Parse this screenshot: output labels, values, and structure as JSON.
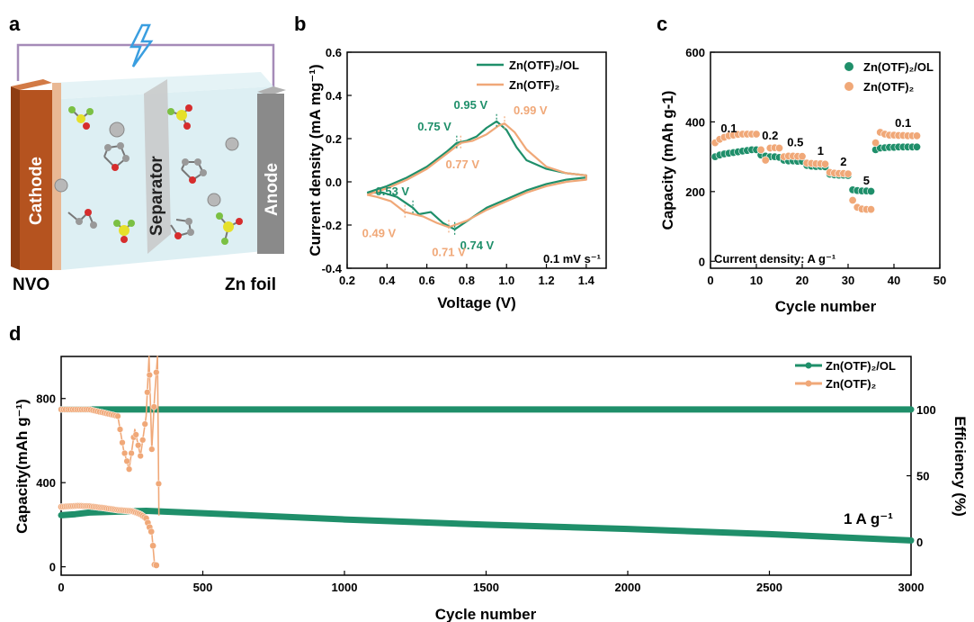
{
  "colors": {
    "ol": "#1f8f6a",
    "plain": "#f0a878",
    "cathode": "#b5531f",
    "anode": "#8a8a8a",
    "wire": "#a58bb8",
    "bolt": "#3a9ee0"
  },
  "panels": {
    "a": "a",
    "b": "b",
    "c": "c",
    "d": "d"
  },
  "schematic": {
    "cathode": "Cathode",
    "separator": "Separator",
    "anode": "Anode",
    "left_label": "NVO",
    "right_label": "Zn foil",
    "bolt_icon": "lightning-icon"
  },
  "chart_data": [
    {
      "id": "b",
      "type": "line",
      "xlabel": "Voltage (V)",
      "ylabel": "Current density (mA mg⁻¹)",
      "xlim": [
        0.2,
        1.5
      ],
      "ylim": [
        -0.4,
        0.6
      ],
      "xticks": [
        "0.2",
        "0.4",
        "0.6",
        "0.8",
        "1.0",
        "1.2",
        "1.4"
      ],
      "yticks": [
        "-0.4",
        "-0.2",
        "0.0",
        "0.2",
        "0.4",
        "0.6"
      ],
      "legend": [
        "Zn(OTF)₂/OL",
        "Zn(OTF)₂"
      ],
      "rate_note": "0.1 mV s⁻¹",
      "series": [
        {
          "name": "Zn(OTF)₂/OL",
          "color_key": "ol",
          "anodic": [
            [
              0.3,
              -0.05
            ],
            [
              0.4,
              -0.02
            ],
            [
              0.5,
              0.02
            ],
            [
              0.6,
              0.07
            ],
            [
              0.7,
              0.14
            ],
            [
              0.75,
              0.18
            ],
            [
              0.8,
              0.19
            ],
            [
              0.85,
              0.21
            ],
            [
              0.9,
              0.25
            ],
            [
              0.95,
              0.28
            ],
            [
              1.0,
              0.24
            ],
            [
              1.05,
              0.16
            ],
            [
              1.1,
              0.1
            ],
            [
              1.2,
              0.06
            ],
            [
              1.3,
              0.04
            ],
            [
              1.4,
              0.03
            ]
          ],
          "cathodic": [
            [
              1.4,
              0.02
            ],
            [
              1.3,
              0.01
            ],
            [
              1.2,
              -0.01
            ],
            [
              1.1,
              -0.04
            ],
            [
              1.0,
              -0.08
            ],
            [
              0.9,
              -0.12
            ],
            [
              0.82,
              -0.17
            ],
            [
              0.74,
              -0.22
            ],
            [
              0.68,
              -0.19
            ],
            [
              0.62,
              -0.14
            ],
            [
              0.56,
              -0.15
            ],
            [
              0.53,
              -0.12
            ],
            [
              0.45,
              -0.07
            ],
            [
              0.38,
              -0.05
            ],
            [
              0.3,
              -0.05
            ]
          ]
        },
        {
          "name": "Zn(OTF)₂",
          "color_key": "plain",
          "anodic": [
            [
              0.3,
              -0.06
            ],
            [
              0.4,
              -0.03
            ],
            [
              0.5,
              0.01
            ],
            [
              0.6,
              0.06
            ],
            [
              0.7,
              0.13
            ],
            [
              0.77,
              0.18
            ],
            [
              0.83,
              0.19
            ],
            [
              0.9,
              0.22
            ],
            [
              0.96,
              0.26
            ],
            [
              0.99,
              0.27
            ],
            [
              1.04,
              0.23
            ],
            [
              1.1,
              0.15
            ],
            [
              1.2,
              0.07
            ],
            [
              1.3,
              0.04
            ],
            [
              1.4,
              0.03
            ]
          ],
          "cathodic": [
            [
              1.4,
              0.01
            ],
            [
              1.3,
              0.0
            ],
            [
              1.2,
              -0.02
            ],
            [
              1.1,
              -0.05
            ],
            [
              1.0,
              -0.09
            ],
            [
              0.9,
              -0.13
            ],
            [
              0.8,
              -0.18
            ],
            [
              0.71,
              -0.21
            ],
            [
              0.65,
              -0.19
            ],
            [
              0.58,
              -0.16
            ],
            [
              0.49,
              -0.14
            ],
            [
              0.42,
              -0.09
            ],
            [
              0.35,
              -0.07
            ],
            [
              0.3,
              -0.06
            ]
          ]
        }
      ],
      "annotations": [
        {
          "text": "0.95 V",
          "x": 0.95,
          "y": 0.28,
          "color_key": "ol"
        },
        {
          "text": "0.75 V",
          "x": 0.75,
          "y": 0.18,
          "color_key": "ol"
        },
        {
          "text": "0.99 V",
          "x": 0.99,
          "y": 0.27,
          "color_key": "plain"
        },
        {
          "text": "0.77 V",
          "x": 0.77,
          "y": 0.18,
          "color_key": "plain"
        },
        {
          "text": "0.53 V",
          "x": 0.53,
          "y": -0.12,
          "color_key": "ol"
        },
        {
          "text": "0.74 V",
          "x": 0.74,
          "y": -0.22,
          "color_key": "ol"
        },
        {
          "text": "0.49 V",
          "x": 0.49,
          "y": -0.14,
          "color_key": "plain"
        },
        {
          "text": "0.71 V",
          "x": 0.71,
          "y": -0.21,
          "color_key": "plain"
        }
      ]
    },
    {
      "id": "c",
      "type": "scatter",
      "xlabel": "Cycle number",
      "ylabel": "Capacity (mAh g-1)",
      "xlim": [
        0,
        50
      ],
      "ylim": [
        -20,
        600
      ],
      "xticks": [
        "0",
        "10",
        "20",
        "30",
        "40",
        "50"
      ],
      "yticks": [
        "0",
        "200",
        "400",
        "600"
      ],
      "legend": [
        "Zn(OTF)₂/OL",
        "Zn(OTF)₂"
      ],
      "note": "Current density: A g⁻¹",
      "rates": [
        {
          "label": "0.1",
          "x": 4,
          "y": 370
        },
        {
          "label": "0.2",
          "x": 13,
          "y": 350
        },
        {
          "label": "0.5",
          "x": 18.5,
          "y": 330
        },
        {
          "label": "1",
          "x": 24,
          "y": 305
        },
        {
          "label": "2",
          "x": 29,
          "y": 275
        },
        {
          "label": "5",
          "x": 34,
          "y": 220
        },
        {
          "label": "0.1",
          "x": 42,
          "y": 385
        }
      ],
      "series": [
        {
          "name": "Zn(OTF)₂/OL",
          "color_key": "ol",
          "segments": [
            {
              "x0": 1,
              "x1": 10,
              "values": [
                300,
                305,
                308,
                310,
                312,
                314,
                316,
                318,
                320,
                320
              ]
            },
            {
              "x0": 11,
              "x1": 15,
              "values": [
                305,
                302,
                300,
                300,
                298
              ]
            },
            {
              "x0": 16,
              "x1": 20,
              "values": [
                290,
                288,
                288,
                287,
                287
              ]
            },
            {
              "x0": 21,
              "x1": 25,
              "values": [
                275,
                273,
                272,
                272,
                271
              ]
            },
            {
              "x0": 26,
              "x1": 30,
              "values": [
                250,
                248,
                247,
                247,
                246
              ]
            },
            {
              "x0": 31,
              "x1": 35,
              "values": [
                205,
                203,
                202,
                202,
                201
              ]
            },
            {
              "x0": 36,
              "x1": 45,
              "values": [
                320,
                325,
                326,
                327,
                327,
                328,
                328,
                328,
                328,
                328
              ]
            }
          ]
        },
        {
          "name": "Zn(OTF)₂",
          "color_key": "plain",
          "segments": [
            {
              "x0": 1,
              "x1": 10,
              "values": [
                340,
                350,
                356,
                360,
                362,
                364,
                365,
                365,
                365,
                365
              ]
            },
            {
              "x0": 11,
              "x1": 15,
              "values": [
                320,
                290,
                325,
                326,
                325
              ]
            },
            {
              "x0": 16,
              "x1": 20,
              "values": [
                300,
                302,
                302,
                301,
                301
              ]
            },
            {
              "x0": 21,
              "x1": 25,
              "values": [
                282,
                281,
                280,
                280,
                279
              ]
            },
            {
              "x0": 26,
              "x1": 30,
              "values": [
                255,
                253,
                252,
                252,
                251
              ]
            },
            {
              "x0": 31,
              "x1": 35,
              "values": [
                175,
                155,
                150,
                149,
                149
              ]
            },
            {
              "x0": 36,
              "x1": 45,
              "values": [
                340,
                370,
                365,
                362,
                362,
                361,
                361,
                360,
                360,
                360
              ]
            }
          ]
        }
      ]
    },
    {
      "id": "d",
      "type": "scatter",
      "xlabel": "Cycle number",
      "ylabel": "Capacity(mAh g⁻¹)",
      "y2label": "Efficiency (%)",
      "xlim": [
        0,
        3000
      ],
      "ylim": [
        -40,
        1000
      ],
      "y2lim": [
        -25,
        140
      ],
      "xticks": [
        "0",
        "500",
        "1000",
        "1500",
        "2000",
        "2500",
        "3000"
      ],
      "yticks": [
        "0",
        "400",
        "800"
      ],
      "y2ticks": [
        "0",
        "50",
        "100"
      ],
      "legend": [
        "Zn(OTF)₂/OL",
        "Zn(OTF)₂"
      ],
      "rate_note": "1 A g⁻¹",
      "series": [
        {
          "name": "Zn(OTF)₂/OL",
          "color_key": "ol",
          "capacity": [
            [
              0,
              245
            ],
            [
              50,
              250
            ],
            [
              100,
              258
            ],
            [
              200,
              262
            ],
            [
              300,
              266
            ],
            [
              500,
              255
            ],
            [
              1000,
              225
            ],
            [
              1500,
              200
            ],
            [
              2000,
              180
            ],
            [
              2500,
              155
            ],
            [
              3000,
              125
            ]
          ],
          "efficiency": [
            [
              0,
              100
            ],
            [
              3000,
              100
            ]
          ]
        },
        {
          "name": "Zn(OTF)₂",
          "color_key": "plain",
          "capacity": [
            [
              0,
              285
            ],
            [
              30,
              288
            ],
            [
              60,
              290
            ],
            [
              100,
              288
            ],
            [
              150,
              280
            ],
            [
              200,
              270
            ],
            [
              250,
              265
            ],
            [
              280,
              250
            ],
            [
              300,
              230
            ],
            [
              320,
              160
            ],
            [
              330,
              10
            ],
            [
              340,
              5
            ]
          ],
          "efficiency": [
            [
              0,
              100
            ],
            [
              100,
              100
            ],
            [
              200,
              95
            ],
            [
              220,
              70
            ],
            [
              240,
              55
            ],
            [
              260,
              85
            ],
            [
              280,
              65
            ],
            [
              300,
              95
            ],
            [
              310,
              140
            ],
            [
              320,
              70
            ],
            [
              330,
              110
            ],
            [
              340,
              140
            ],
            [
              345,
              20
            ]
          ]
        }
      ]
    }
  ]
}
